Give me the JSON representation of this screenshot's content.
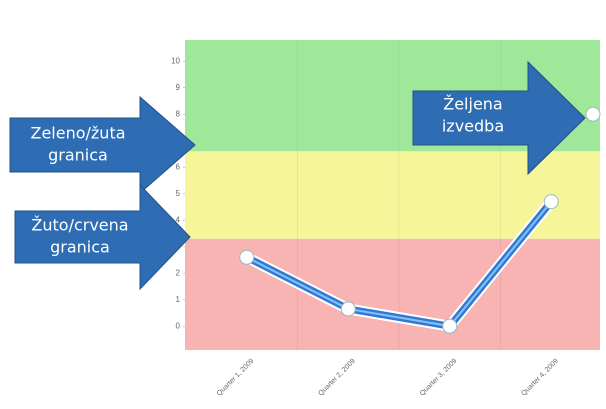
{
  "chart_data": {
    "type": "line",
    "categories": [
      "Quarter 1, 2009",
      "Quarter 2, 2009",
      "Quarter 3, 2009",
      "Quarter 4, 2009"
    ],
    "series": [
      {
        "color": "#2e7bd6",
        "values": [
          2.6,
          0.65,
          0,
          4.7
        ]
      }
    ],
    "ylim": [
      -0.9,
      10.8
    ],
    "yticks": [
      0,
      1,
      2,
      3,
      4,
      5,
      6,
      7,
      8,
      9,
      10
    ],
    "bands": [
      {
        "from": -0.9,
        "to": 3.3,
        "color": "#f8b3b3"
      },
      {
        "from": 3.3,
        "to": 6.6,
        "color": "#f6f59a"
      },
      {
        "from": 6.6,
        "to": 10.8,
        "color": "#9fe89a"
      }
    ],
    "target": {
      "value": 8,
      "lines": [
        "Željena",
        "izvedba"
      ]
    },
    "annotations": [
      {
        "lines": [
          "Zeleno/žuta",
          "granica"
        ],
        "value": 6.6
      },
      {
        "lines": [
          "Žuto/crvena",
          "granica"
        ],
        "value": 3.3
      }
    ]
  }
}
